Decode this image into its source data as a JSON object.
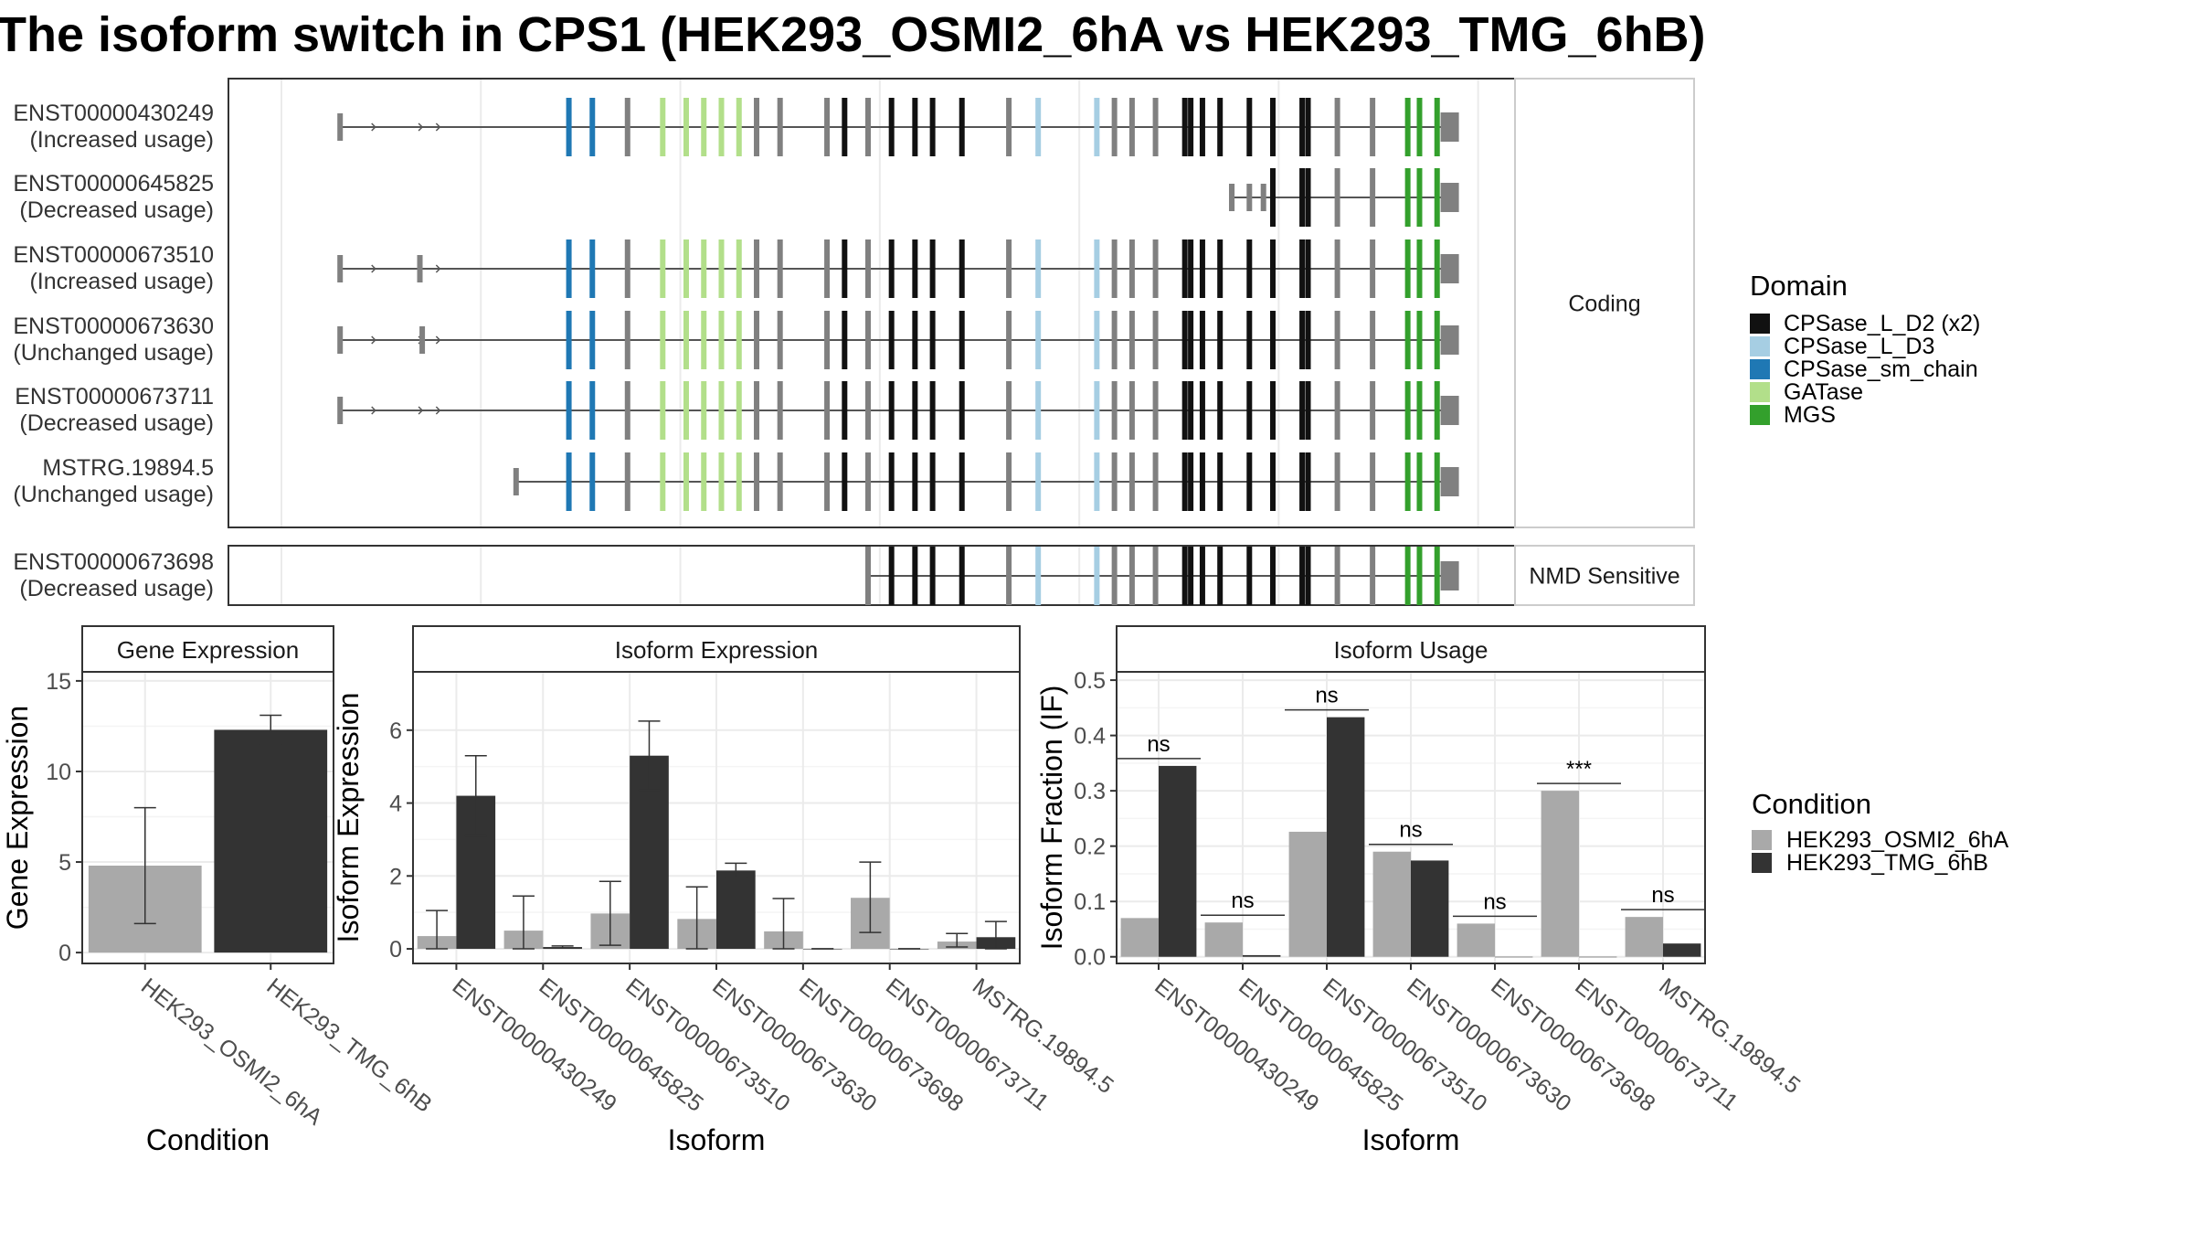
{
  "title": "The isoform switch in CPS1 (HEK293_OSMI2_6hA vs HEK293_TMG_6hB)",
  "colors": {
    "cond1": "#a9a9a9",
    "cond2": "#333333",
    "intron": "#555555",
    "exon": "#808080",
    "panel_border": "#333333",
    "grid": "#ebebeb",
    "strip_bg": "#ffffff"
  },
  "transcript_panel": {
    "facets": [
      {
        "label": "Coding",
        "rows": [
          {
            "id": "ENST00000430249",
            "usage": "(Increased usage)",
            "start": 0.05,
            "end": 1.0,
            "extra_exons": [],
            "cds_start": 0.23
          },
          {
            "id": "ENST00000645825",
            "usage": "(Decreased usage)",
            "start": 0.81,
            "end": 1.0,
            "extra_exons": [
              0.81,
              0.825,
              0.837
            ],
            "cds_start": 0.85
          },
          {
            "id": "ENST00000673510",
            "usage": "(Increased usage)",
            "start": 0.05,
            "end": 1.0,
            "extra_exons": [
              0.118
            ],
            "cds_start": 0.23
          },
          {
            "id": "ENST00000673630",
            "usage": "(Unchanged usage)",
            "start": 0.05,
            "end": 1.0,
            "extra_exons": [
              0.12
            ],
            "cds_start": 0.23
          },
          {
            "id": "ENST00000673711",
            "usage": "(Decreased usage)",
            "start": 0.05,
            "end": 1.0,
            "extra_exons": [],
            "cds_start": 0.23
          },
          {
            "id": "MSTRG.19894.5",
            "usage": "(Unchanged usage)",
            "start": 0.2,
            "end": 1.0,
            "extra_exons": [],
            "cds_start": 0.23
          }
        ]
      },
      {
        "label": "NMD Sensitive",
        "rows": [
          {
            "id": "ENST00000673698",
            "usage": "(Decreased usage)",
            "start": 0.5,
            "end": 1.0,
            "extra_exons": [],
            "cds_start": 0.5
          }
        ]
      }
    ],
    "domain_legend": {
      "title": "Domain",
      "items": [
        {
          "label": "CPSase_L_D2 (x2)",
          "color": "#111111"
        },
        {
          "label": "CPSase_L_D3",
          "color": "#a6cee3"
        },
        {
          "label": "CPSase_sm_chain",
          "color": "#1f78b4"
        },
        {
          "label": "GATase",
          "color": "#b2df8a"
        },
        {
          "label": "MGS",
          "color": "#33a02c"
        }
      ]
    }
  },
  "chart_data": [
    {
      "type": "bar",
      "title": "Gene Expression",
      "xlabel": "Condition",
      "ylabel": "Gene Expression",
      "categories": [
        "HEK293_OSMI2_6hA",
        "HEK293_TMG_6hB"
      ],
      "values": [
        4.8,
        12.3
      ],
      "err_low": [
        1.6,
        11.5
      ],
      "err_high": [
        8.0,
        13.1
      ],
      "ylim": [
        -0.6,
        15.5
      ],
      "yticks": [
        0,
        5,
        10,
        15
      ]
    },
    {
      "type": "bar",
      "title": "Isoform Expression",
      "xlabel": "Isoform",
      "ylabel": "Isoform Expression",
      "categories": [
        "ENST00000430249",
        "ENST00000645825",
        "ENST00000673510",
        "ENST00000673630",
        "ENST00000673698",
        "ENST00000673711",
        "MSTRG.19894.5"
      ],
      "series": [
        {
          "name": "HEK293_OSMI2_6hA",
          "values": [
            0.35,
            0.5,
            0.97,
            0.82,
            0.48,
            1.4,
            0.2
          ],
          "err_low": [
            0.0,
            0.0,
            0.1,
            0.0,
            0.0,
            0.45,
            0.05
          ],
          "err_high": [
            1.05,
            1.45,
            1.85,
            1.7,
            1.38,
            2.38,
            0.42
          ]
        },
        {
          "name": "HEK293_TMG_6hB",
          "values": [
            4.2,
            0.05,
            5.3,
            2.15,
            0.0,
            0.0,
            0.32
          ],
          "err_low": [
            3.1,
            0.02,
            4.35,
            1.95,
            0.0,
            0.0,
            0.0
          ],
          "err_high": [
            5.3,
            0.08,
            6.25,
            2.35,
            0.0,
            0.0,
            0.75
          ]
        }
      ],
      "ylim": [
        -0.4,
        7.6
      ],
      "yticks": [
        0,
        2,
        4,
        6
      ]
    },
    {
      "type": "bar",
      "title": "Isoform Usage",
      "xlabel": "Isoform",
      "ylabel": "Isoform Fraction (IF)",
      "categories": [
        "ENST00000430249",
        "ENST00000645825",
        "ENST00000673510",
        "ENST00000673630",
        "ENST00000673698",
        "ENST00000673711",
        "MSTRG.19894.5"
      ],
      "series": [
        {
          "name": "HEK293_OSMI2_6hA",
          "values": [
            0.07,
            0.062,
            0.226,
            0.19,
            0.06,
            0.3,
            0.072
          ]
        },
        {
          "name": "HEK293_TMG_6hB",
          "values": [
            0.345,
            0.003,
            0.433,
            0.174,
            0.0,
            0.0,
            0.024
          ]
        }
      ],
      "significance": [
        "ns",
        "ns",
        "ns",
        "ns",
        "ns",
        "***",
        "ns"
      ],
      "ylim": [
        -0.012,
        0.515
      ],
      "yticks": [
        0.0,
        0.1,
        0.2,
        0.3,
        0.4,
        0.5
      ],
      "ytick_labels": [
        "0.0",
        "0.1",
        "0.2",
        "0.3",
        "0.4",
        "0.5"
      ]
    }
  ],
  "condition_legend": {
    "title": "Condition",
    "items": [
      {
        "label": "HEK293_OSMI2_6hA",
        "color": "#a9a9a9"
      },
      {
        "label": "HEK293_TMG_6hB",
        "color": "#333333"
      }
    ]
  }
}
